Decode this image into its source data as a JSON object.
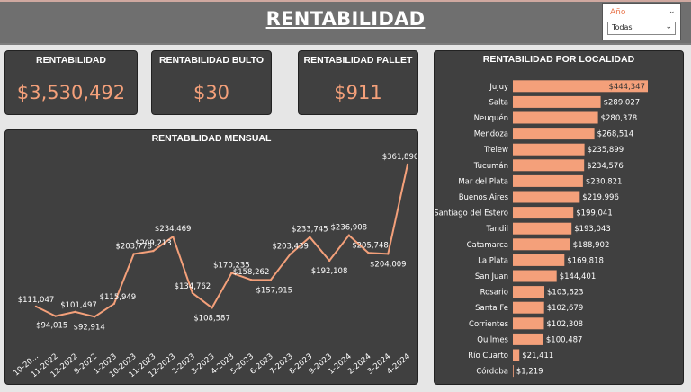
{
  "header": {
    "title": "RENTABILIDAD"
  },
  "slicer": {
    "label": "Año",
    "value": "Todas"
  },
  "kpis": [
    {
      "title": "RENTABILIDAD",
      "value": "$3,530,492"
    },
    {
      "title": "RENTABILIDAD BULTO",
      "value": "$30"
    },
    {
      "title": "RENTABILIDAD PALLET",
      "value": "$911"
    }
  ],
  "colors": {
    "accent": "#f4a07a",
    "card_bg": "#404040",
    "header_bg": "#6f6f6f"
  },
  "chart_data": [
    {
      "type": "line",
      "title": "RENTABILIDAD MENSUAL",
      "x": [
        "10-20...",
        "11-2022",
        "12-2022",
        "9-2022",
        "1-2023",
        "10-2023",
        "11-2023",
        "12-2023",
        "2-2023",
        "3-2023",
        "4-2023",
        "5-2023",
        "6-2023",
        "7-2023",
        "8-2023",
        "9-2023",
        "1-2024",
        "2-2024",
        "3-2024",
        "4-2024"
      ],
      "values": [
        111047,
        94015,
        101497,
        92914,
        115949,
        203778,
        209213,
        234469,
        134762,
        108587,
        170235,
        158262,
        157915,
        203439,
        233745,
        192108,
        236908,
        205748,
        204009,
        361890
      ],
      "labels": [
        "$111,047",
        "$94,015",
        "$101,497",
        "$92,914",
        "$115,949",
        "$203,778",
        "$209,213",
        "$234,469",
        "$134,762",
        "$108,587",
        "$170,235",
        "$158,262",
        "$157,915",
        "$203,439",
        "$233,745",
        "$192,108",
        "$236,908",
        "$205,748",
        "$204,009",
        "$361,890"
      ],
      "color": "#f4a07a"
    },
    {
      "type": "bar",
      "orientation": "horizontal",
      "title": "RENTABILIDAD POR LOCALIDAD",
      "categories": [
        "Jujuy",
        "Salta",
        "Neuquén",
        "Mendoza",
        "Trelew",
        "Tucumán",
        "Mar del Plata",
        "Buenos Aires",
        "Santiago del Estero",
        "Tandil",
        "Catamarca",
        "La Plata",
        "San Juan",
        "Rosario",
        "Santa Fe",
        "Corrientes",
        "Quilmes",
        "Río Cuarto",
        "Córdoba"
      ],
      "values": [
        444347,
        289027,
        280378,
        268514,
        235899,
        234576,
        230821,
        219996,
        199041,
        193043,
        188902,
        169818,
        144401,
        103623,
        102679,
        102308,
        100487,
        21411,
        1219
      ],
      "labels": [
        "$444,347",
        "$289,027",
        "$280,378",
        "$268,514",
        "$235,899",
        "$234,576",
        "$230,821",
        "$219,996",
        "$199,041",
        "$193,043",
        "$188,902",
        "$169,818",
        "$144,401",
        "$103,623",
        "$102,679",
        "$102,308",
        "$100,487",
        "$21,411",
        "$1,219"
      ],
      "color": "#f4a07a"
    }
  ]
}
